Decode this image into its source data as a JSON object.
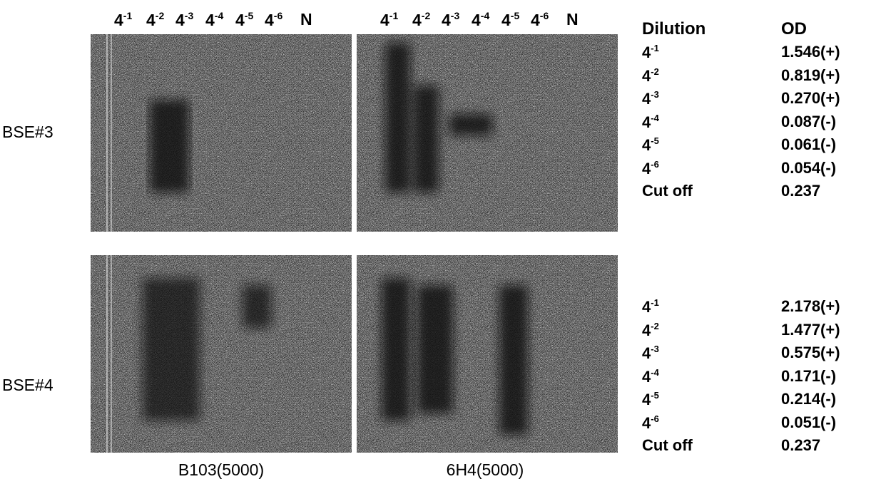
{
  "column_headers": [
    [
      {
        "base": "4",
        "exp": "-1"
      },
      {
        "base": "4",
        "exp": "-2"
      },
      {
        "base": "4",
        "exp": "-3"
      },
      {
        "base": "4",
        "exp": "-4"
      },
      {
        "base": "4",
        "exp": "-5"
      },
      {
        "base": "4",
        "exp": "-6"
      },
      {
        "base": "N"
      }
    ],
    [
      {
        "base": "4",
        "exp": "-1"
      },
      {
        "base": "4",
        "exp": "-2"
      },
      {
        "base": "4",
        "exp": "-3"
      },
      {
        "base": "4",
        "exp": "-4"
      },
      {
        "base": "4",
        "exp": "-5"
      },
      {
        "base": "4",
        "exp": "-6"
      },
      {
        "base": "N"
      }
    ]
  ],
  "row_labels": [
    "BSE#3",
    "BSE#4"
  ],
  "captions": [
    "B103(5000)",
    "6H4(5000)"
  ],
  "table": {
    "headers": [
      "Dilution",
      "OD"
    ],
    "blocks": [
      {
        "rows": [
          {
            "dilution": {
              "base": "4",
              "exp": "-1"
            },
            "od": "1.546(+)"
          },
          {
            "dilution": {
              "base": "4",
              "exp": "-2"
            },
            "od": "0.819(+)"
          },
          {
            "dilution": {
              "base": "4",
              "exp": "-3"
            },
            "od": "0.270(+)"
          },
          {
            "dilution": {
              "base": "4",
              "exp": "-4"
            },
            "od": "0.087(-)"
          },
          {
            "dilution": {
              "base": "4",
              "exp": "-5"
            },
            "od": "0.061(-)"
          },
          {
            "dilution": {
              "base": "4",
              "exp": "-6"
            },
            "od": "0.054(-)"
          }
        ],
        "cutoff": {
          "label": "Cut off",
          "value": "0.237"
        }
      },
      {
        "rows": [
          {
            "dilution": {
              "base": "4",
              "exp": "-1"
            },
            "od": "2.178(+)"
          },
          {
            "dilution": {
              "base": "4",
              "exp": "-2"
            },
            "od": "1.477(+)"
          },
          {
            "dilution": {
              "base": "4",
              "exp": "-3"
            },
            "od": "0.575(+)"
          },
          {
            "dilution": {
              "base": "4",
              "exp": "-4"
            },
            "od": "0.171(-)"
          },
          {
            "dilution": {
              "base": "4",
              "exp": "-5"
            },
            "od": "0.214(-)"
          },
          {
            "dilution": {
              "base": "4",
              "exp": "-6"
            },
            "od": "0.051(-)"
          }
        ],
        "cutoff": {
          "label": "Cut off",
          "value": "0.237"
        }
      }
    ]
  }
}
